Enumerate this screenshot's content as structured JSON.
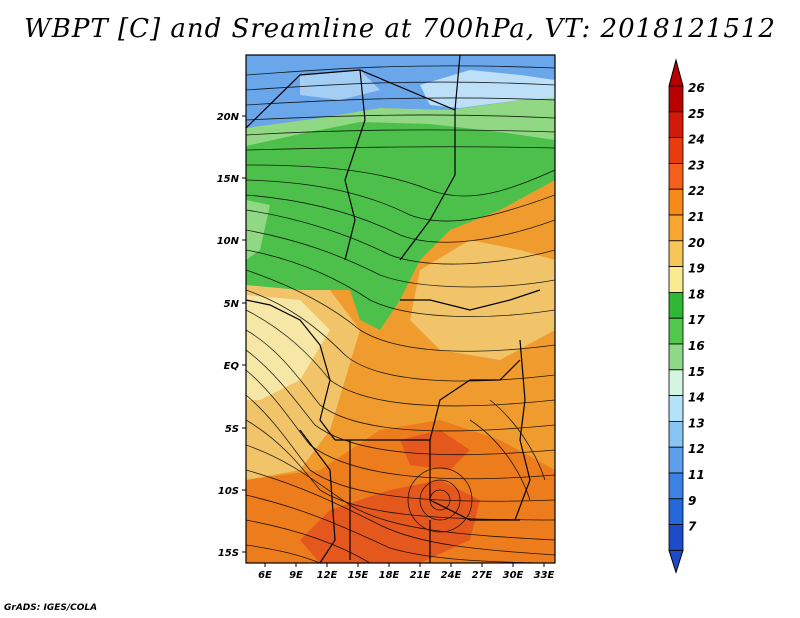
{
  "title": "WBPT [C] and Sreamline at 700hPa, VT: 2018121512",
  "credit": "GrADS: IGES/COLA",
  "lat_labels": [
    "20N",
    "15N",
    "10N",
    "5N",
    "EQ",
    "5S",
    "10S",
    "15S"
  ],
  "lon_labels": [
    "6E",
    "9E",
    "12E",
    "15E",
    "18E",
    "21E",
    "24E",
    "27E",
    "30E",
    "33E"
  ],
  "colorbar": {
    "labels": [
      "26",
      "25",
      "24",
      "23",
      "22",
      "21",
      "20",
      "19",
      "18",
      "17",
      "16",
      "15",
      "14",
      "13",
      "12",
      "11",
      "9",
      "7"
    ],
    "colors": [
      "#b80000",
      "#d21a0a",
      "#e83c0e",
      "#f4601c",
      "#f88a1c",
      "#f8a630",
      "#f8c658",
      "#faeb90",
      "#2fb834",
      "#50c84a",
      "#8ed888",
      "#d4f6e0",
      "#b4e2f8",
      "#88c4f4",
      "#5c9eec",
      "#3c82e4",
      "#2468dc",
      "#1c4cc8"
    ],
    "top_arrow_color": "#b80000",
    "bottom_arrow_color": "#1c4cc8"
  },
  "map": {
    "colors": {
      "blue": "#6aa6ea",
      "lightblue": "#bde0f8",
      "green": "#4cc04a",
      "lightgreen": "#90d884",
      "cream": "#f6e7a6",
      "lightorange": "#f2c46a",
      "orange": "#ef9b2e",
      "deeporange": "#ec7c1c",
      "redorange": "#e4581e"
    }
  }
}
